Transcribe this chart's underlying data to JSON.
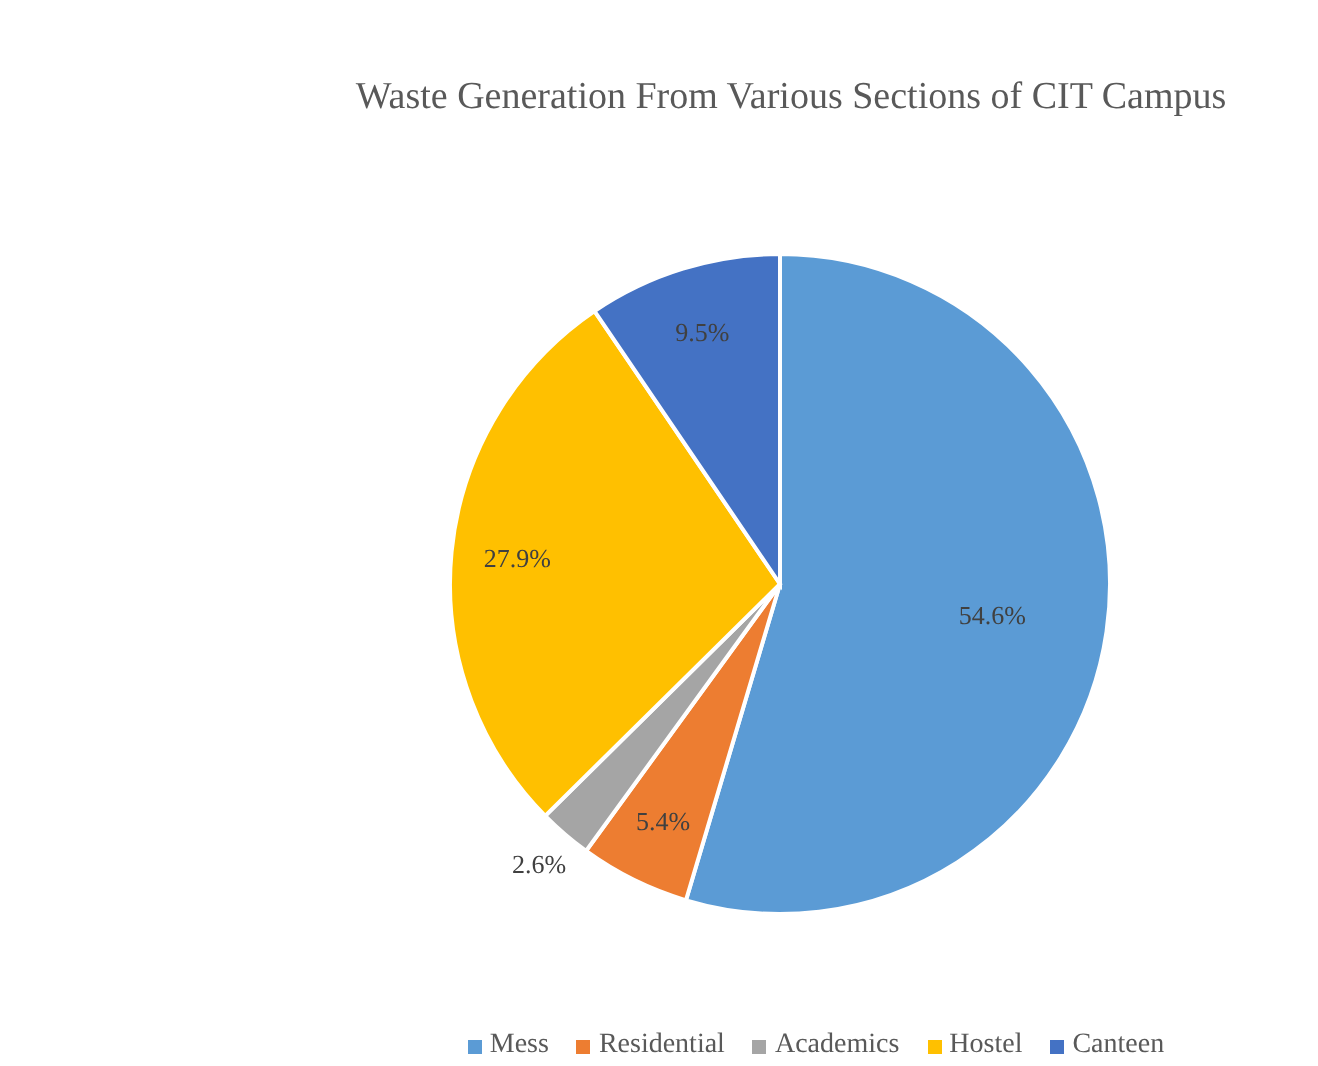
{
  "chart_data": {
    "type": "pie",
    "title": "Waste Generation From Various Sections of CIT Campus",
    "categories": [
      "Mess",
      "Residential",
      "Academics",
      "Hostel",
      "Canteen"
    ],
    "values": [
      54.6,
      5.4,
      2.6,
      27.9,
      9.5
    ],
    "colors": [
      "#5b9bd5",
      "#ed7d31",
      "#a5a5a5",
      "#ffc000",
      "#4472c4"
    ],
    "value_labels": [
      "54.6%",
      "5.4%",
      "2.6%",
      "27.9%",
      "9.5%"
    ],
    "legend": "bottom"
  }
}
